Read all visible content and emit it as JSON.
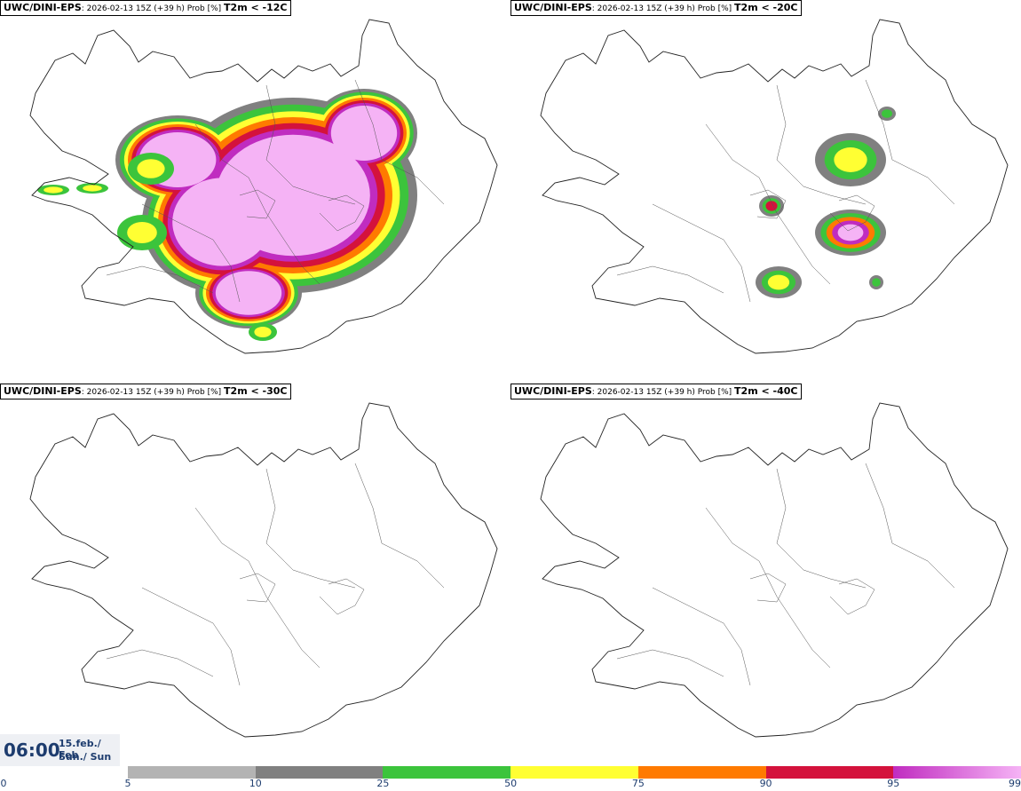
{
  "panels": [
    {
      "model": "UWC/DINI-EPS",
      "run": "2026-02-13 15Z (+39 h) Prob [%]",
      "param": "T2m < -12C"
    },
    {
      "model": "UWC/DINI-EPS",
      "run": "2026-02-13 15Z (+39 h) Prob [%]",
      "param": "T2m < -20C"
    },
    {
      "model": "UWC/DINI-EPS",
      "run": "2026-02-13 15Z (+39 h) Prob [%]",
      "param": "T2m < -30C"
    },
    {
      "model": "UWC/DINI-EPS",
      "run": "2026-02-13 15Z (+39 h) Prob [%]",
      "param": "T2m < -40C"
    }
  ],
  "valid_time": {
    "time": "06:00",
    "date_line1": "15.feb./ Feb",
    "date_line2": "Sun./ Sun"
  },
  "legend": {
    "labels": [
      "0",
      "5",
      "10",
      "25",
      "50",
      "75",
      "90",
      "95",
      "99"
    ],
    "colors": [
      "#b3b3b3",
      "#808080",
      "#3cc43c",
      "#ffff33",
      "#ff7a00",
      "#d4123c",
      "#c02cc0",
      "#f5b3f5"
    ]
  }
}
